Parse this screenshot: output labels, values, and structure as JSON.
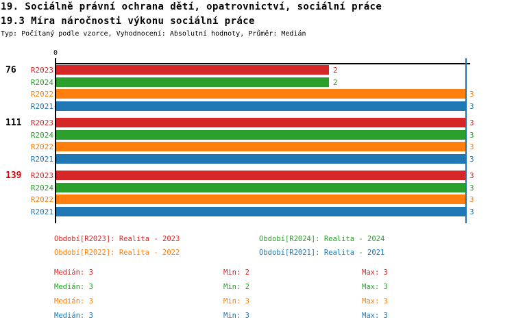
{
  "header": {
    "title_line1": "19. Sociálně právní ochrana dětí, opatrovnictví, sociální práce",
    "title_line2": "19.3 Míra náročnosti výkonu sociální práce",
    "subtitle": "Typ: Počítaný podle vzorce, Vyhodnocení: Absolutní hodnoty, Průměr: Medián"
  },
  "colors": {
    "R2023": "#d62728",
    "R2024": "#2ca02c",
    "R2022": "#ff7f0e",
    "R2021": "#1f77b4",
    "highlight_red": "#dd0000",
    "axis": "#000000",
    "text": "#000000",
    "median_line": "#1f77b4",
    "background": "#ffffff"
  },
  "chart_data": {
    "type": "bar",
    "orientation": "horizontal",
    "value_axis": {
      "origin_label": "0",
      "min": 0,
      "max": 3,
      "position": "top"
    },
    "median_line_value": 3,
    "value_labels_shown": true,
    "series_order": [
      "R2023",
      "R2024",
      "R2022",
      "R2021"
    ],
    "groups": [
      {
        "label": "76",
        "label_color": "black",
        "values": {
          "R2023": 2,
          "R2024": 2,
          "R2022": 3,
          "R2021": 3
        }
      },
      {
        "label": "111",
        "label_color": "black",
        "values": {
          "R2023": 3,
          "R2024": 3,
          "R2022": 3,
          "R2021": 3
        }
      },
      {
        "label": "139",
        "label_color": "red",
        "values": {
          "R2023": 3,
          "R2024": 3,
          "R2022": 3,
          "R2021": 3
        }
      }
    ]
  },
  "legend": {
    "columns": [
      [
        {
          "series": "R2023",
          "label": "Období[R2023]: Realita - 2023"
        },
        {
          "series": "R2022",
          "label": "Období[R2022]: Realita - 2022"
        }
      ],
      [
        {
          "series": "R2024",
          "label": "Období[R2024]: Realita - 2024"
        },
        {
          "series": "R2021",
          "label": "Období[R2021]: Realita - 2021"
        }
      ]
    ]
  },
  "stats": [
    {
      "series": "R2023",
      "cells": [
        "Medián: 3",
        "Min: 2",
        "Max: 3"
      ]
    },
    {
      "series": "R2024",
      "cells": [
        "Medián: 3",
        "Min: 2",
        "Max: 3"
      ]
    },
    {
      "series": "R2022",
      "cells": [
        "Medián: 3",
        "Min: 3",
        "Max: 3"
      ]
    },
    {
      "series": "R2021",
      "cells": [
        "Medián: 3",
        "Min: 3",
        "Max: 3"
      ]
    }
  ]
}
